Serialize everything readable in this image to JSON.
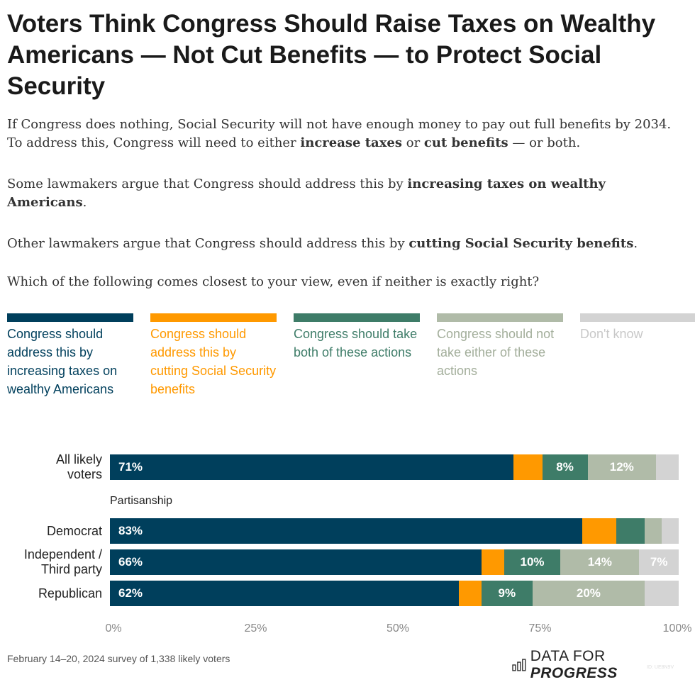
{
  "title": "Voters Think Congress Should Raise Taxes on Wealthy Americans — Not Cut Benefits — to Protect Social Security",
  "intro": {
    "p1": [
      "If Congress does nothing, Social Security will not have enough money to pay out full benefits by 2034. To address this, Congress will need to either ",
      "increase taxes",
      " or ",
      "cut benefits",
      " — or both."
    ],
    "p2": [
      "Some lawmakers argue that Congress should address this by ",
      "increasing taxes on wealthy Americans",
      "."
    ],
    "p3": [
      "Other lawmakers argue that Congress should address this by ",
      "cutting Social Security benefits",
      "."
    ],
    "p4": "Which of the following comes closest to your view, even if neither is exactly right?"
  },
  "chart_data": {
    "type": "bar",
    "orientation": "horizontal-stacked",
    "xlim": [
      0,
      100
    ],
    "xticks": [
      "0%",
      "25%",
      "50%",
      "75%",
      "100%"
    ],
    "group_label": "Partisanship",
    "series": [
      {
        "name": "Congress should address this by increasing taxes on wealthy Americans",
        "color": "#003f5c"
      },
      {
        "name": "Congress should address this by cutting Social Security benefits",
        "color": "#ff9900"
      },
      {
        "name": "Congress should take both of these actions",
        "color": "#3e7c68"
      },
      {
        "name": "Congress should not take either of these actions",
        "color": "#b0bba8"
      },
      {
        "name": "Don't know",
        "color": "#d3d3d3"
      }
    ],
    "rows": [
      {
        "label": "All likely voters",
        "values": [
          71,
          5,
          8,
          12,
          4
        ]
      },
      {
        "label": "Democrat",
        "values": [
          83,
          6,
          5,
          3,
          3
        ]
      },
      {
        "label": "Independent / Third party",
        "values": [
          66,
          4,
          10,
          14,
          7
        ]
      },
      {
        "label": "Republican",
        "values": [
          62,
          4,
          9,
          20,
          6
        ]
      }
    ]
  },
  "footer": {
    "note": "February 14–20, 2024 survey of 1,338 likely voters",
    "logo": "DATA FOR PROGRESS",
    "logo_id": "ID: UE8N9V"
  }
}
